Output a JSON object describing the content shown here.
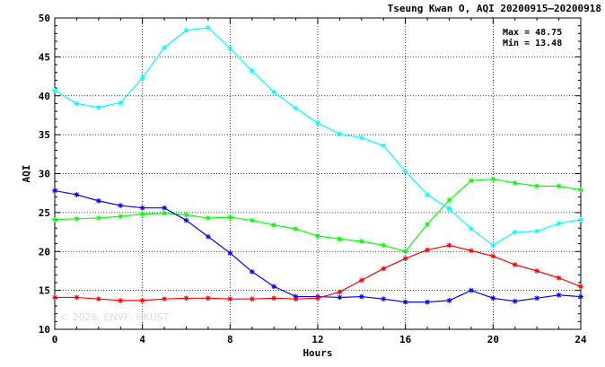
{
  "chart_data": {
    "type": "line",
    "title": "Tseung Kwan O, AQI 20200915—20200918",
    "xlabel": "Hours",
    "ylabel": "AQI",
    "xlim": [
      0,
      24
    ],
    "ylim": [
      10,
      50
    ],
    "xticks": [
      0,
      4,
      8,
      12,
      16,
      20,
      24
    ],
    "yticks": [
      10,
      15,
      20,
      25,
      30,
      35,
      40,
      45,
      50
    ],
    "grid": true,
    "stats": {
      "max_label": "Max = 48.75",
      "min_label": "Min = 13.48"
    },
    "watermark": "© 2026, ENVF, HKUST",
    "x": [
      0,
      1,
      2,
      3,
      4,
      5,
      6,
      7,
      8,
      9,
      10,
      11,
      12,
      13,
      14,
      15,
      16,
      17,
      18,
      19,
      20,
      21,
      22,
      23,
      24
    ],
    "series": [
      {
        "color": "#00ffff",
        "values": [
          40.7,
          39.0,
          38.5,
          39.1,
          42.3,
          46.2,
          48.4,
          48.75,
          46.1,
          43.2,
          40.5,
          38.4,
          36.5,
          35.1,
          34.6,
          33.6,
          30.3,
          27.3,
          25.5,
          22.9,
          20.8,
          22.5,
          22.6,
          23.6,
          24.1
        ]
      },
      {
        "color": "#00ff00",
        "values": [
          24.1,
          24.2,
          24.3,
          24.5,
          24.8,
          24.9,
          24.7,
          24.3,
          24.4,
          24.0,
          23.4,
          22.9,
          22.0,
          21.6,
          21.3,
          20.8,
          20.0,
          23.5,
          26.6,
          29.1,
          29.3,
          28.8,
          28.4,
          28.4,
          27.9
        ]
      },
      {
        "color": "#0000ff",
        "values": [
          27.8,
          27.3,
          26.5,
          25.9,
          25.6,
          25.6,
          24.0,
          21.9,
          19.8,
          17.4,
          15.5,
          14.2,
          14.2,
          14.1,
          14.2,
          13.9,
          13.5,
          13.5,
          13.7,
          15.0,
          14.0,
          13.6,
          14.0,
          14.4,
          14.2
        ]
      },
      {
        "color": "#ff0000",
        "values": [
          14.1,
          14.1,
          13.9,
          13.7,
          13.7,
          13.9,
          14.0,
          14.0,
          13.9,
          13.9,
          14.0,
          13.9,
          14.0,
          14.8,
          16.3,
          17.8,
          19.1,
          20.2,
          20.8,
          20.1,
          19.4,
          18.3,
          17.5,
          16.6,
          15.5
        ]
      }
    ]
  }
}
